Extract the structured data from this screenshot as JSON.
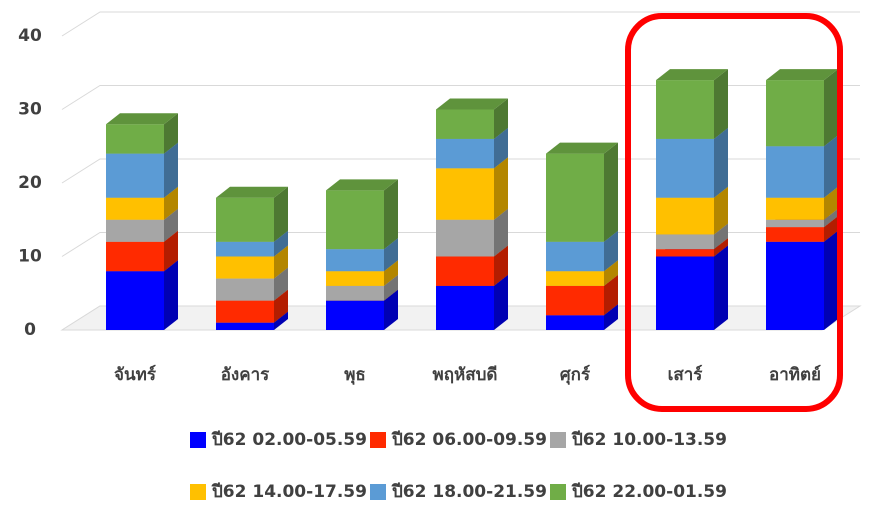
{
  "chart_data": {
    "type": "bar3d_stacked",
    "categories": [
      "จันทร์",
      "อังคาร",
      "พุธ",
      "พฤหัสบดี",
      "ศุกร์",
      "เสาร์",
      "อาทิตย์"
    ],
    "series": [
      {
        "name": "ปี62 02.00-05.59",
        "color": "#0000ff",
        "values": [
          8,
          1,
          4,
          6,
          2,
          10,
          12
        ]
      },
      {
        "name": "ปี62 06.00-09.59",
        "color": "#ff2a00",
        "values": [
          4,
          3,
          0,
          4,
          4,
          1,
          2
        ]
      },
      {
        "name": "ปี62 10.00-13.59",
        "color": "#a6a6a6",
        "values": [
          3,
          3,
          2,
          5,
          0,
          2,
          1
        ]
      },
      {
        "name": "ปี62 14.00-17.59",
        "color": "#ffc000",
        "values": [
          3,
          3,
          2,
          7,
          2,
          5,
          3
        ]
      },
      {
        "name": "ปี62 18.00-21.59",
        "color": "#5b9bd5",
        "values": [
          6,
          2,
          3,
          4,
          4,
          8,
          7
        ]
      },
      {
        "name": "ปี62 22.00-01.59",
        "color": "#70ad47",
        "values": [
          4,
          6,
          8,
          4,
          12,
          8,
          9
        ]
      }
    ],
    "ylim": [
      0,
      40
    ],
    "yticks": [
      0,
      10,
      20,
      30,
      40
    ],
    "grid": true,
    "legend": "bottom"
  }
}
